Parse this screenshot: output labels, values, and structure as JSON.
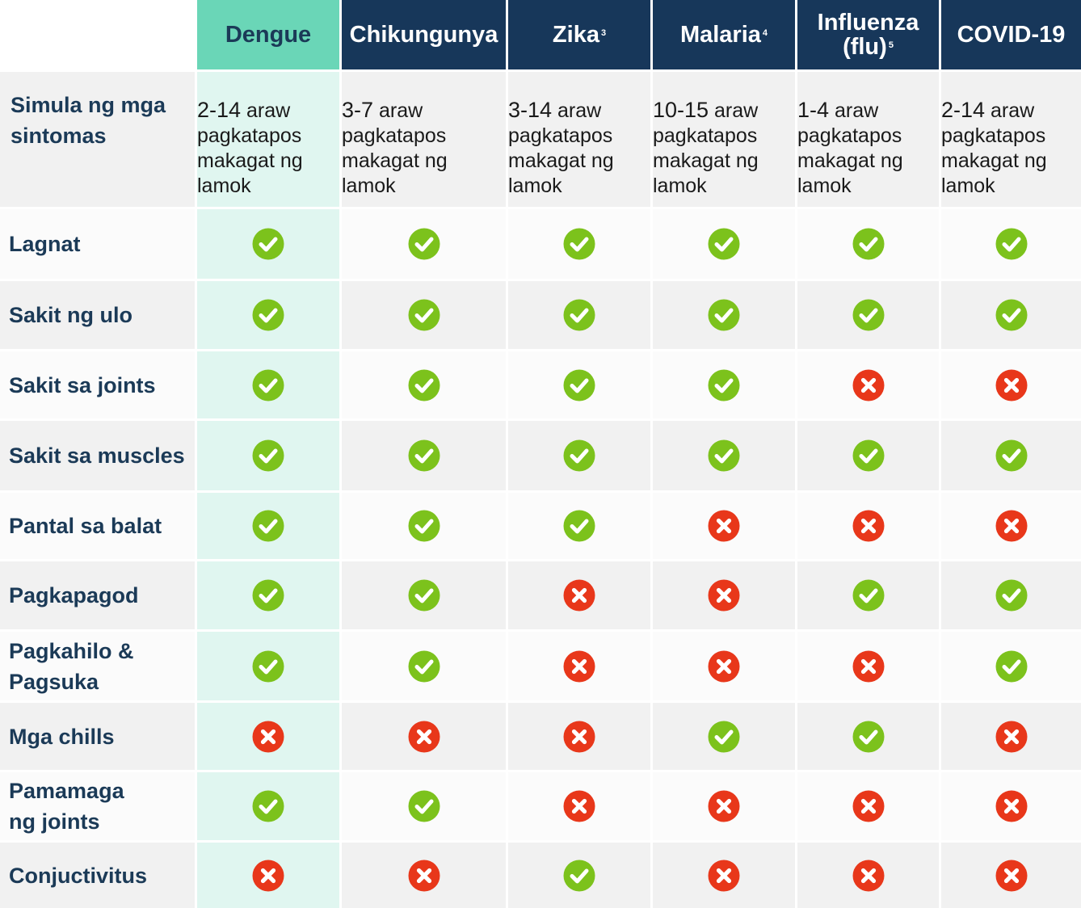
{
  "columns": [
    {
      "name": "Dengue",
      "sup": "",
      "color": "#6ad6b7"
    },
    {
      "name": "Chikungunya",
      "sup": "",
      "color": "#17375a"
    },
    {
      "name": "Zika",
      "sup": "3",
      "color": "#17375a"
    },
    {
      "name": "Malaria",
      "sup": "4",
      "color": "#17375a"
    },
    {
      "name": "Influenza (flu)",
      "sup": "5",
      "color": "#17375a"
    },
    {
      "name": "COVID-19",
      "sup": "",
      "color": "#17375a"
    }
  ],
  "onset": {
    "label": "Simula ng mga sintomas",
    "unit": "araw",
    "suffix_line1": "pagkatapos",
    "suffix_line2": "makagat ng",
    "suffix_line3": "lamok",
    "values": [
      "2-14",
      "3-7",
      "3-14",
      "10-15",
      "1-4",
      "2-14"
    ]
  },
  "rows": [
    {
      "label": "Lagnat",
      "values": [
        true,
        true,
        true,
        true,
        true,
        true
      ]
    },
    {
      "label": "Sakit ng ulo",
      "values": [
        true,
        true,
        true,
        true,
        true,
        true
      ]
    },
    {
      "label": "Sakit sa joints",
      "values": [
        true,
        true,
        true,
        true,
        false,
        false
      ]
    },
    {
      "label": "Sakit sa muscles",
      "values": [
        true,
        true,
        true,
        true,
        true,
        true
      ]
    },
    {
      "label": "Pantal sa balat",
      "values": [
        true,
        true,
        true,
        false,
        false,
        false
      ]
    },
    {
      "label": "Pagkapagod",
      "values": [
        true,
        true,
        false,
        false,
        true,
        true
      ]
    },
    {
      "label": "Pagkahilo & Pagsuka",
      "values": [
        true,
        true,
        false,
        false,
        false,
        true
      ]
    },
    {
      "label": "Mga chills",
      "values": [
        false,
        false,
        false,
        true,
        true,
        false
      ]
    },
    {
      "label": "Pamamaga ng joints",
      "values": [
        true,
        true,
        false,
        false,
        false,
        false
      ]
    },
    {
      "label": "Conjuctivitus",
      "values": [
        false,
        false,
        true,
        false,
        false,
        false
      ]
    }
  ],
  "icons": {
    "yes": "check-circle-icon",
    "no": "x-circle-icon"
  },
  "colors": {
    "navy": "#17375a",
    "teal_header": "#6ad6b7",
    "teal_column": "#e0f6f0",
    "label_text": "#1b3a57",
    "row_gray": "#f1f1f1",
    "row_white": "#fbfbfb",
    "check": "#7cc21c",
    "cross": "#e8371a"
  }
}
